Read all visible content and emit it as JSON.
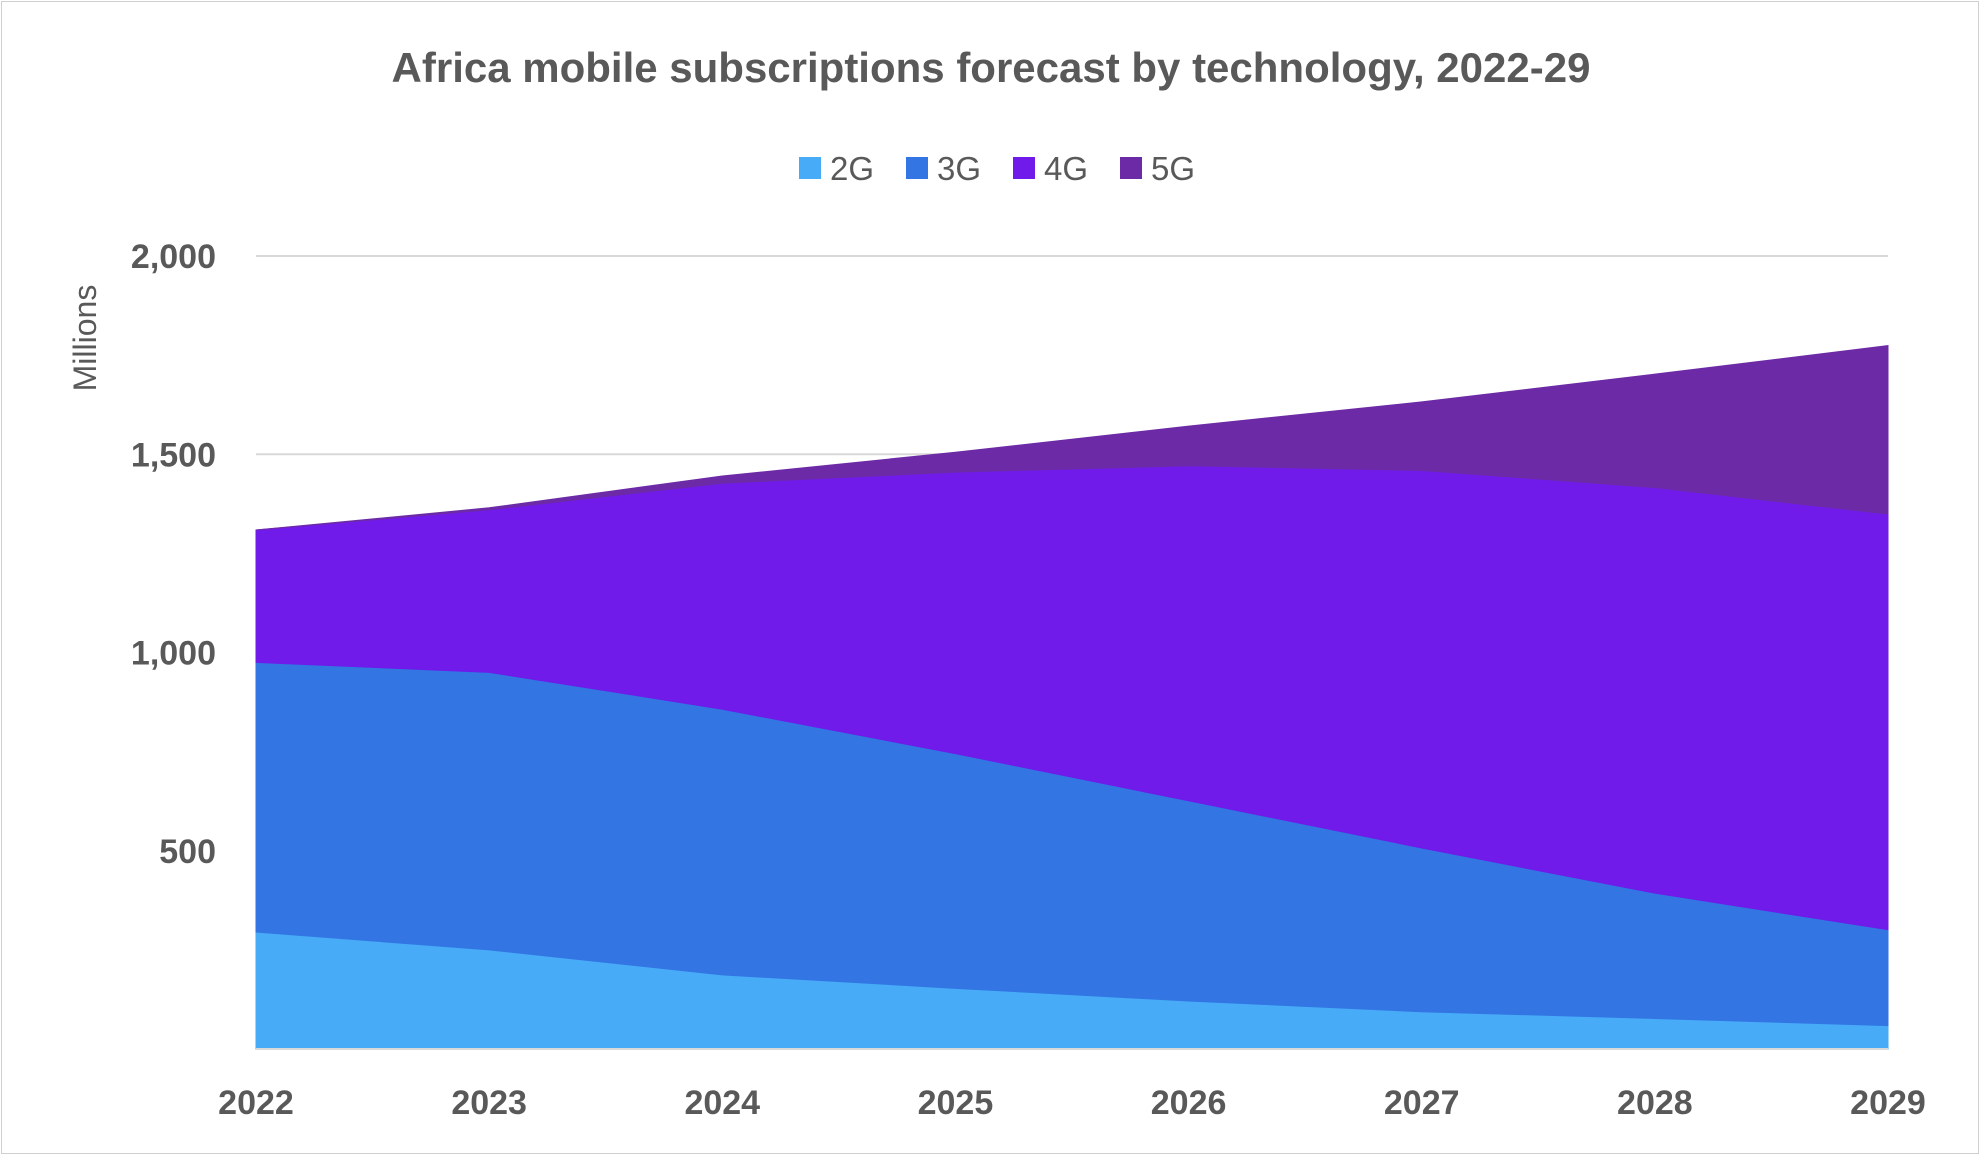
{
  "chart_data": {
    "type": "area",
    "stacked": true,
    "title": "Africa mobile subscriptions forecast by technology, 2022-29",
    "ylabel": "Millions",
    "xlabel": "",
    "categories": [
      "2022",
      "2023",
      "2024",
      "2025",
      "2026",
      "2027",
      "2028",
      "2029"
    ],
    "ylim": [
      0,
      2000
    ],
    "yticks": [
      500,
      1000,
      1500,
      2000
    ],
    "ytick_labels": [
      "500",
      "1,000",
      "1,500",
      "2,000"
    ],
    "grid": true,
    "legend_position": "top",
    "series": [
      {
        "name": "2G",
        "color": "#47abf8",
        "values": [
          295,
          250,
          187,
          153,
          121,
          94,
          77,
          59
        ]
      },
      {
        "name": "3G",
        "color": "#3275e3",
        "values": [
          680,
          700,
          670,
          592,
          505,
          413,
          316,
          242
        ]
      },
      {
        "name": "4G",
        "color": "#701be9",
        "values": [
          334,
          410,
          570,
          710,
          845,
          952,
          1023,
          1048
        ]
      },
      {
        "name": "5G",
        "color": "#6c2aa6",
        "values": [
          0,
          5,
          18,
          50,
          100,
          173,
          286,
          425
        ]
      }
    ]
  }
}
